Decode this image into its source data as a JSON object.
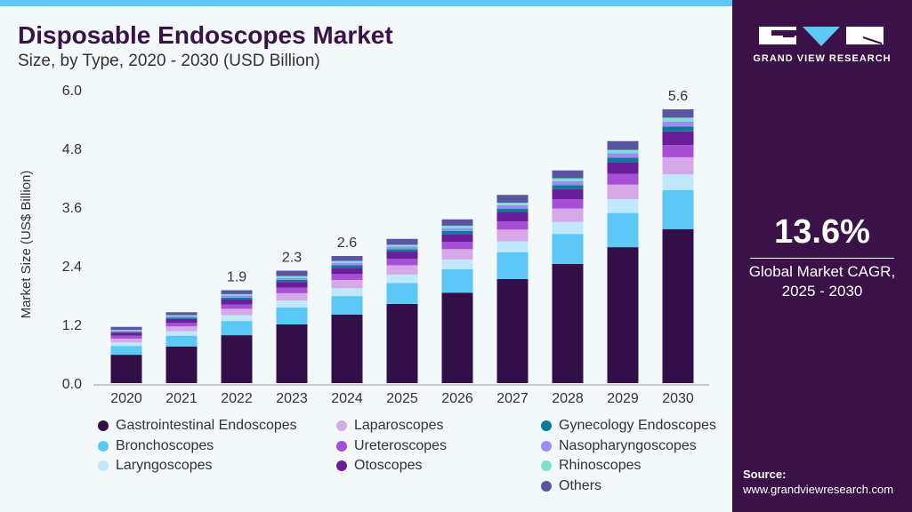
{
  "header": {
    "title": "Disposable Endoscopes Market",
    "subtitle": "Size, by Type, 2020 - 2030 (USD Billion)"
  },
  "side": {
    "logo_text": "GRAND VIEW RESEARCH",
    "cagr": "13.6%",
    "cagr_label_1": "Global Market CAGR,",
    "cagr_label_2": "2025 - 2030",
    "source_label": "Source:",
    "source_url": "www.grandviewresearch.com"
  },
  "colors": {
    "accent": "#5bc8f5",
    "panel": "#3a1248"
  },
  "chart_data": {
    "type": "bar",
    "stacked": true,
    "title": "Disposable Endoscopes Market",
    "subtitle": "Size, by Type, 2020 - 2030 (USD Billion)",
    "xlabel": "",
    "ylabel": "Market Size (US$ Billion)",
    "ylim": [
      0,
      6.0
    ],
    "yticks": [
      "0.0",
      "1.2",
      "2.4",
      "3.6",
      "4.8",
      "6.0"
    ],
    "categories": [
      "2020",
      "2021",
      "2022",
      "2023",
      "2024",
      "2025",
      "2026",
      "2027",
      "2028",
      "2029",
      "2030"
    ],
    "data_labels": {
      "2022": "1.9",
      "2023": "2.3",
      "2024": "2.6",
      "2030": "5.6"
    },
    "legend_position": "bottom",
    "series": [
      {
        "name": "Gastrointestinal Endoscopes",
        "color": "#330f4a",
        "values": [
          0.58,
          0.75,
          0.98,
          1.2,
          1.4,
          1.62,
          1.85,
          2.13,
          2.44,
          2.78,
          3.15
        ]
      },
      {
        "name": "Bronchoscopes",
        "color": "#5bc8f5",
        "values": [
          0.18,
          0.22,
          0.29,
          0.35,
          0.38,
          0.43,
          0.48,
          0.55,
          0.61,
          0.7,
          0.8
        ]
      },
      {
        "name": "Laryngoscopes",
        "color": "#bfe9fb",
        "values": [
          0.07,
          0.09,
          0.12,
          0.14,
          0.16,
          0.17,
          0.2,
          0.22,
          0.25,
          0.28,
          0.32
        ]
      },
      {
        "name": "Laparoscopes",
        "color": "#d6a8e8",
        "values": [
          0.08,
          0.1,
          0.13,
          0.15,
          0.17,
          0.19,
          0.21,
          0.24,
          0.27,
          0.3,
          0.35
        ]
      },
      {
        "name": "Ureteroscopes",
        "color": "#a64fd6",
        "values": [
          0.06,
          0.07,
          0.09,
          0.11,
          0.12,
          0.13,
          0.15,
          0.17,
          0.19,
          0.22,
          0.25
        ]
      },
      {
        "name": "Otoscopes",
        "color": "#6a1f9a",
        "values": [
          0.06,
          0.08,
          0.1,
          0.12,
          0.13,
          0.15,
          0.16,
          0.19,
          0.21,
          0.24,
          0.28
        ]
      },
      {
        "name": "Gynecology Endoscopes",
        "color": "#0e7a9a",
        "values": [
          0.02,
          0.03,
          0.04,
          0.04,
          0.05,
          0.05,
          0.06,
          0.07,
          0.08,
          0.09,
          0.1
        ]
      },
      {
        "name": "Nasopharyngoscopes",
        "color": "#9b8cf5",
        "values": [
          0.02,
          0.03,
          0.04,
          0.04,
          0.05,
          0.05,
          0.06,
          0.07,
          0.08,
          0.09,
          0.1
        ]
      },
      {
        "name": "Rhinoscopes",
        "color": "#7ddfcf",
        "values": [
          0.02,
          0.02,
          0.03,
          0.04,
          0.04,
          0.04,
          0.05,
          0.05,
          0.06,
          0.07,
          0.08
        ]
      },
      {
        "name": "Others",
        "color": "#5a55a0",
        "values": [
          0.06,
          0.06,
          0.08,
          0.11,
          0.1,
          0.12,
          0.13,
          0.16,
          0.16,
          0.18,
          0.17
        ]
      }
    ]
  }
}
